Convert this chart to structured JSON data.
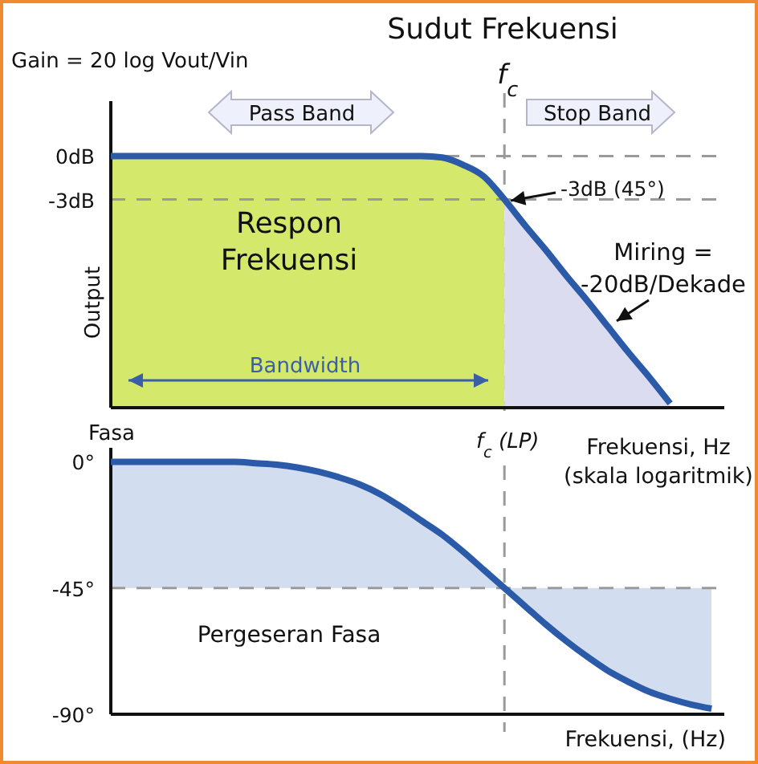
{
  "chart_data": [
    {
      "type": "line",
      "title": "Sudut Frekuensi",
      "ylabel": "Output",
      "xlabel": "Frekuensi, Hz (skala logaritmik)",
      "categories": [
        null,
        null,
        null,
        null,
        null,
        null,
        null,
        null,
        null,
        null,
        null,
        null,
        null,
        null,
        null,
        null,
        null,
        null,
        null,
        null,
        null,
        null,
        null,
        null,
        null,
        null,
        null,
        null,
        null,
        null
      ],
      "series": [
        {
          "color": "#2b5aa8",
          "values": [
            0,
            0,
            0,
            0,
            0,
            0,
            0,
            0,
            0,
            0,
            0,
            0,
            0,
            0,
            0,
            0,
            -0.1,
            -0.6,
            -1.4,
            -3,
            -4.8,
            -6.5,
            -8.3,
            -10,
            -11.8,
            -13.6,
            -15.3,
            -17.1,
            null,
            null
          ]
        }
      ],
      "ylim": [
        -17.4,
        3.8
      ],
      "yticks": [
        {
          "value": 0,
          "label": "0dB"
        },
        {
          "value": -3,
          "label": "-3dB"
        }
      ],
      "line_style": "solid",
      "marker": "none",
      "grid": false,
      "ref_lines": [
        {
          "axis": "y",
          "value": 0,
          "color": "#9a9a9a",
          "line_style": "dashed"
        },
        {
          "axis": "y",
          "value": -3,
          "color": "#9a9a9a",
          "line_style": "dashed"
        }
      ],
      "annotations": [
        "Gain = 20 log Vout/Vin",
        "Pass Band",
        "Stop Band",
        "Respon Frekuensi",
        "-3dB (45°)",
        "Miring = -20dB/Dekade",
        "Bandwidth",
        "f$_{c}$"
      ]
    },
    {
      "type": "line",
      "ylabel": "Fasa",
      "xlabel": "Frekuensi, (Hz)",
      "categories": [
        null,
        null,
        null,
        null,
        null,
        null,
        null,
        null,
        null,
        null,
        null,
        null,
        null,
        null,
        null,
        null,
        null,
        null,
        null,
        null,
        null,
        null,
        null,
        null,
        null,
        null,
        null,
        null,
        null,
        null
      ],
      "series": [
        {
          "color": "#2b5aa8",
          "values": [
            0,
            0,
            0,
            0,
            0,
            0,
            0,
            -0.5,
            -1,
            -2,
            -3.5,
            -5.5,
            -8,
            -11.5,
            -16,
            -21,
            -26,
            -32,
            -38.5,
            -45,
            -51.5,
            -58,
            -64,
            -69.5,
            -74.5,
            -78.5,
            -82,
            -84.5,
            -86.5,
            -88
          ]
        }
      ],
      "ylim": [
        -90,
        5
      ],
      "yticks": [
        {
          "value": 0,
          "label": "0°"
        },
        {
          "value": -45,
          "label": "-45°"
        },
        {
          "value": -90,
          "label": "-90°"
        }
      ],
      "line_style": "solid",
      "marker": "none",
      "grid": false,
      "ref_lines": [
        {
          "axis": "y",
          "value": -45,
          "color": "#9a9a9a",
          "line_style": "dashed"
        }
      ],
      "bands": [
        {
          "axis": "y",
          "from": -45,
          "to": 0,
          "color": "#d2deef"
        },
        {
          "axis": "y",
          "from": -90,
          "to": -45,
          "color": "#d2deef"
        }
      ],
      "annotations": [
        "Pergeseran Fasa",
        "f$_{c}$ (LP)"
      ]
    }
  ]
}
